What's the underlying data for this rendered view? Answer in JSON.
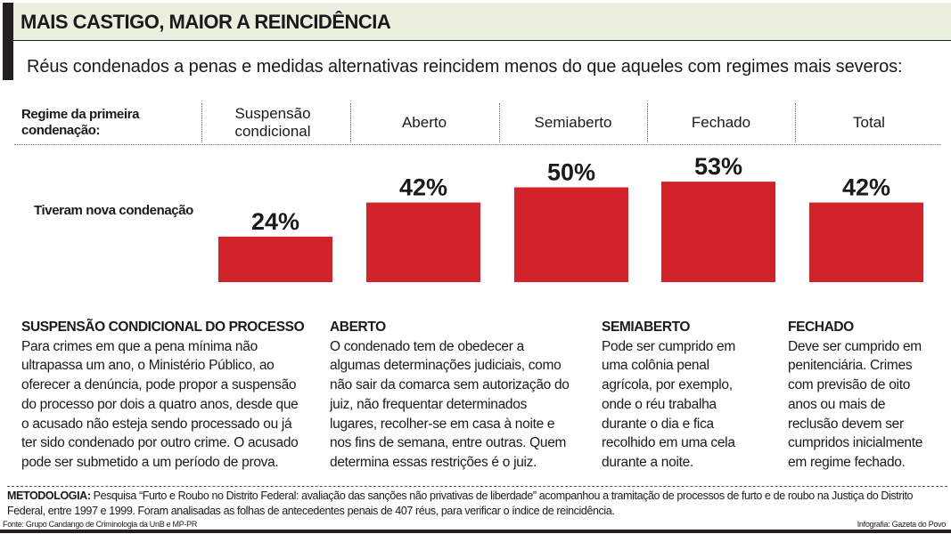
{
  "title": "MAIS CASTIGO, MAIOR A REINCIDÊNCIA",
  "subtitle": "Réus condenados a penas e medidas alternativas reincidem menos do que aqueles com regimes mais severos:",
  "colors": {
    "bar": "#d2232a",
    "header_bg": "#e9f0df"
  },
  "chart_data": {
    "type": "bar",
    "category_header": "Regime da primeira condenação:",
    "row_label": "Tiveram nova condenação",
    "categories": [
      "Suspensão condicional",
      "Aberto",
      "Semiaberto",
      "Fechado",
      "Total"
    ],
    "values": [
      24,
      42,
      50,
      53,
      42
    ],
    "value_labels": [
      "24%",
      "42%",
      "50%",
      "53%",
      "42%"
    ],
    "unit": "%",
    "ylim": [
      0,
      100
    ]
  },
  "descriptions": [
    {
      "heading": "SUSPENSÃO CONDICIONAL DO PROCESSO",
      "lines": [
        "Para crimes em que a pena mínima não",
        "ultrapassa um ano, o Ministério Público, ao",
        "oferecer a denúncia, pode propor a suspensão",
        "do processo por dois a quatro anos, desde que",
        "o acusado não esteja sendo processado ou já",
        "ter sido condenado por outro crime. O acusado",
        "pode ser submetido a um período de prova."
      ]
    },
    {
      "heading": "ABERTO",
      "lines": [
        "O condenado tem de obedecer a",
        "algumas determinações judiciais, como",
        "não sair da comarca sem autorização do",
        "juiz, não frequentar determinados",
        "lugares, recolher-se em casa à noite e",
        "nos fins de semana, entre outras. Quem",
        "determina essas restrições é o juiz."
      ]
    },
    {
      "heading": "SEMIABERTO",
      "lines": [
        "Pode ser cumprido em",
        "uma colônia penal",
        "agrícola, por exemplo,",
        "onde o réu trabalha",
        "durante o dia e fica",
        "recolhido em uma cela",
        "durante a noite."
      ]
    },
    {
      "heading": "FECHADO",
      "lines": [
        "Deve ser cumprido em",
        "penitenciária. Crimes",
        "com previsão de oito",
        "anos ou mais de",
        "reclusão devem ser",
        "cumpridos inicialmente",
        "em regime fechado."
      ]
    }
  ],
  "methodology": {
    "label": "METODOLOGIA:",
    "text": " Pesquisa “Furto e Roubo no Distrito Federal: avaliação das sanções não privativas de liberdade” acompanhou a tramitação de processos de furto e de roubo na Justiça do Distrito Federal, entre 1997 e 1999. Foram analisadas as folhas de antecedentes penais de 407 réus, para verificar o índice de reincidência."
  },
  "source": "Fonte: Grupo Candango de Criminologia da UnB e MP-PR",
  "credit": "Infografia: Gazeta do Povo"
}
